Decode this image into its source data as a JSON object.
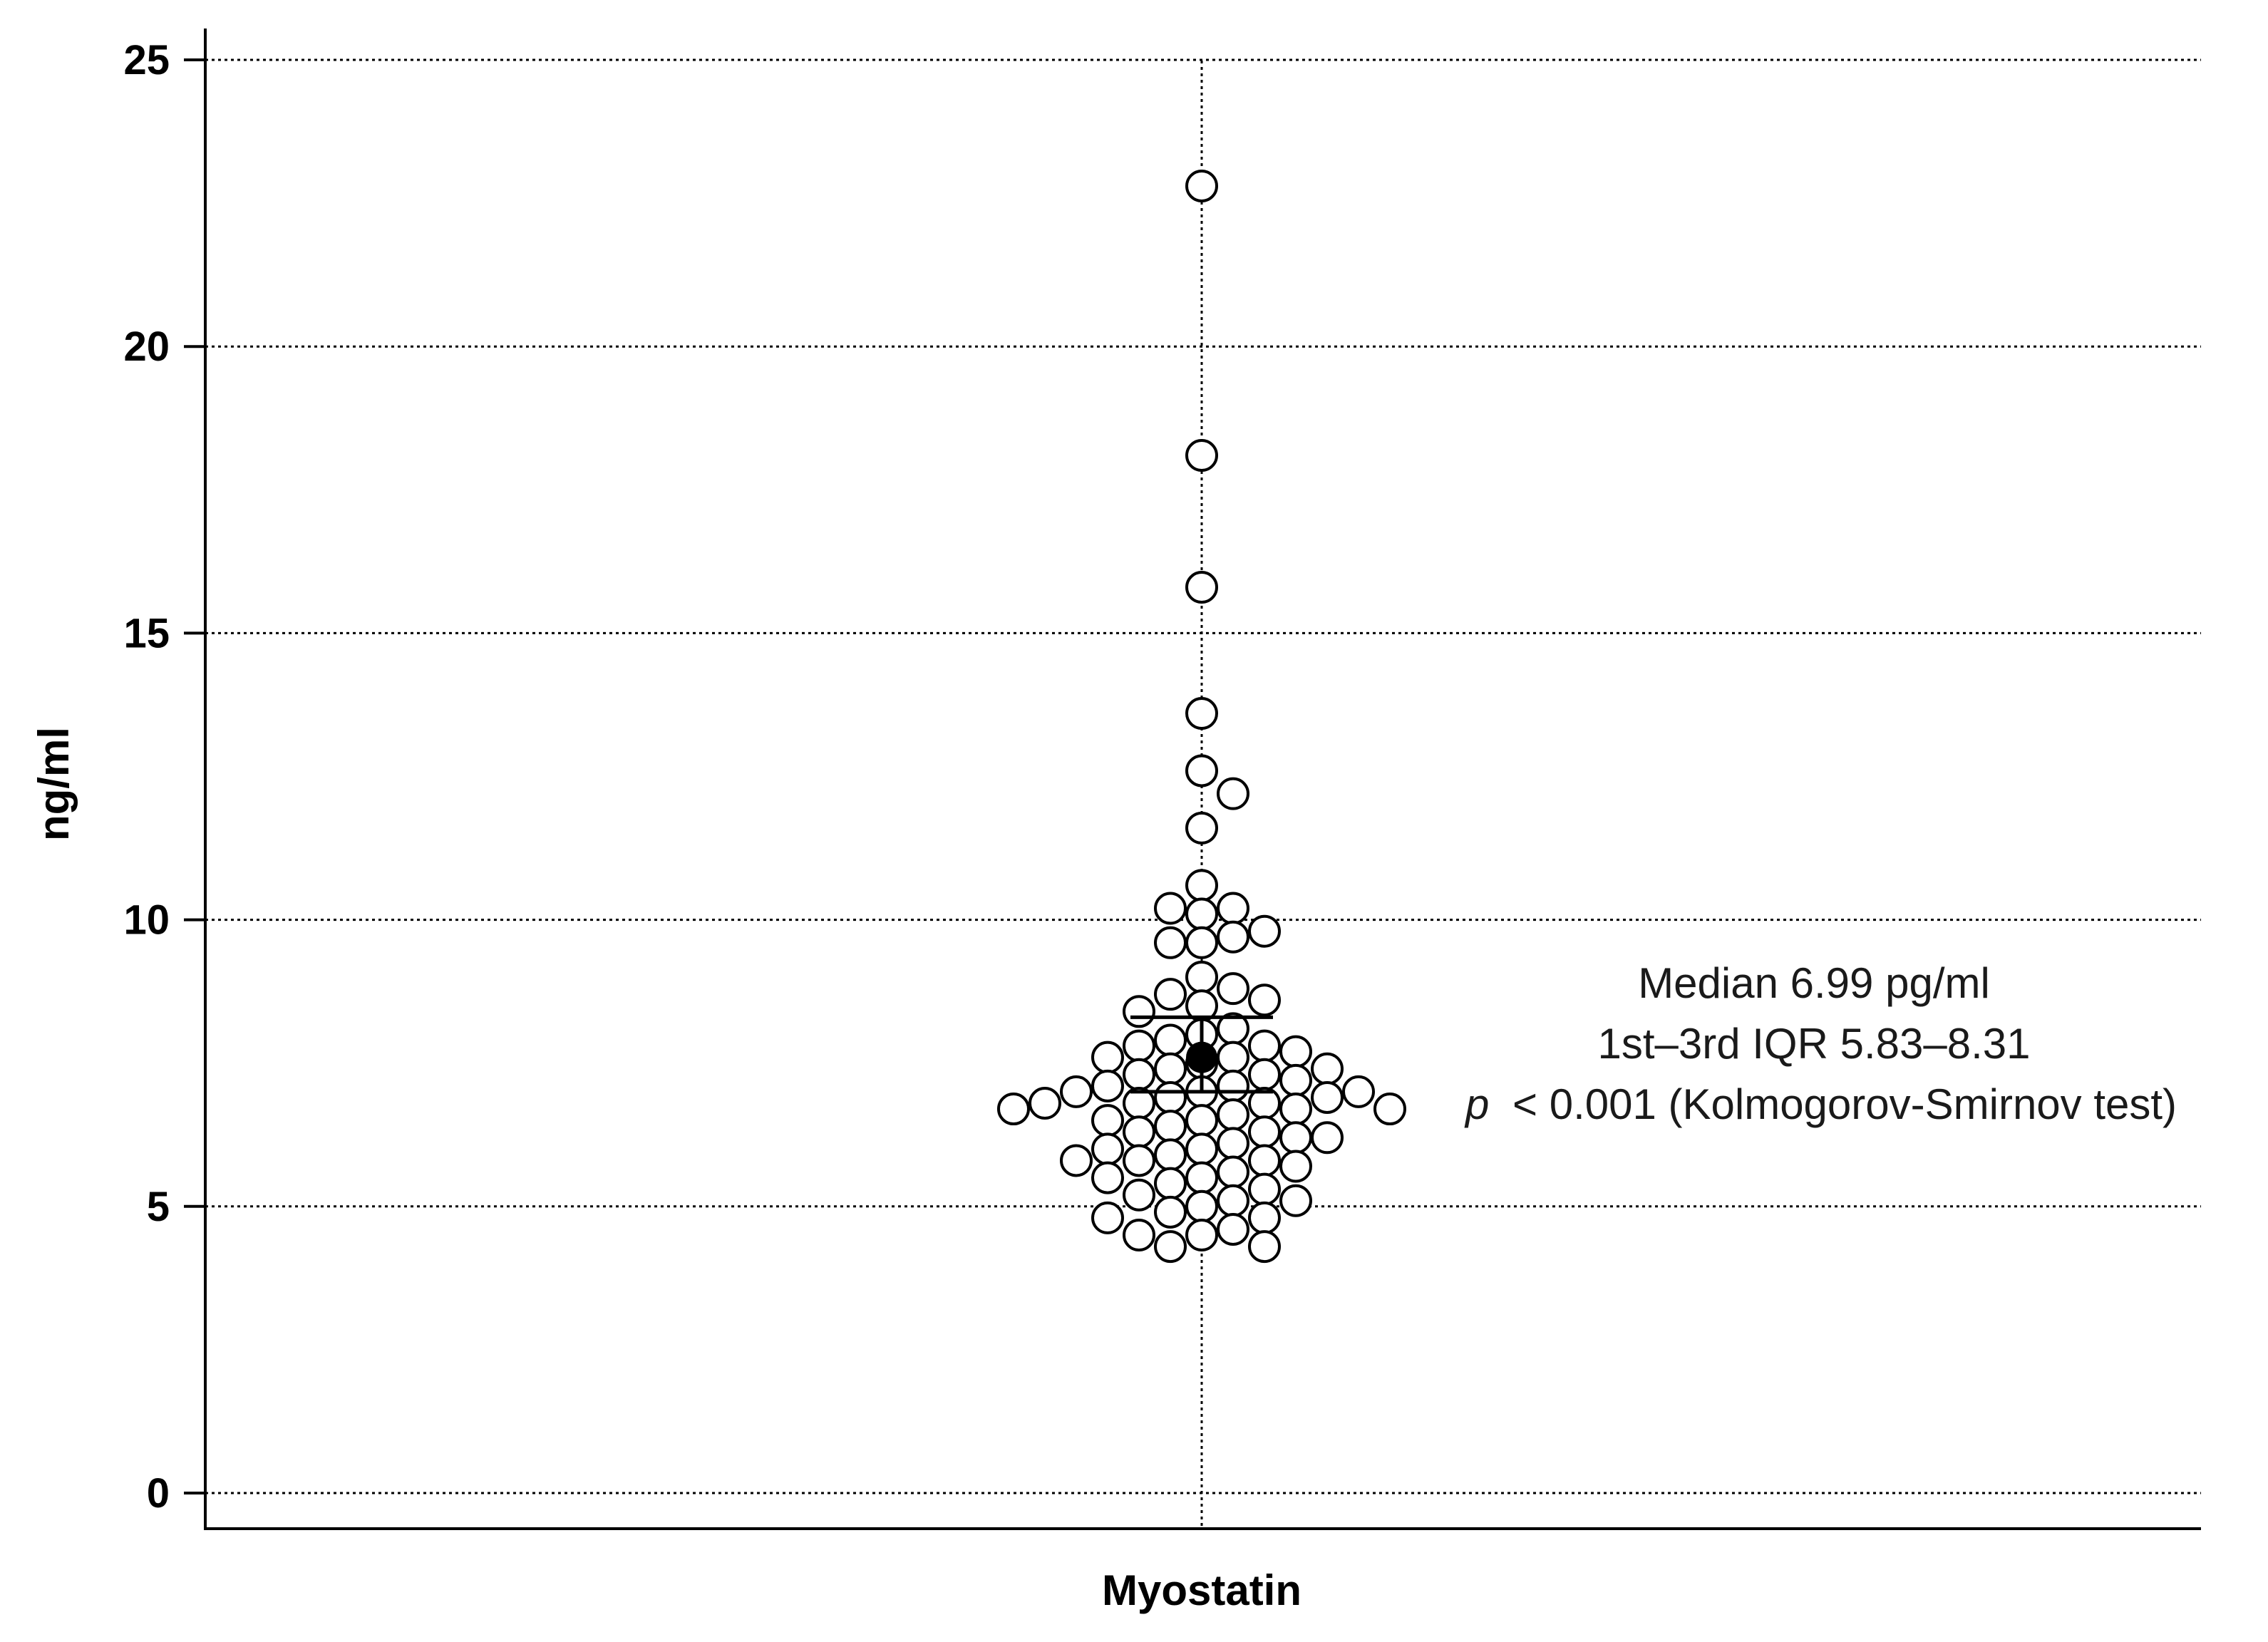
{
  "chart_data": {
    "type": "scatter",
    "subtype": "dot-plot",
    "title": "",
    "xlabel": "Myostatin",
    "ylabel": "ng/ml",
    "ylim": [
      0,
      25
    ],
    "yticks": [
      "0",
      "5",
      "10",
      "15",
      "20",
      "25"
    ],
    "grid": true,
    "categories": [
      "Myostatin"
    ],
    "series": [
      {
        "values": [
          22.8,
          18.1,
          15.8,
          13.6,
          12.6,
          12.2,
          11.6,
          10.6,
          10.2,
          10.1,
          10.2,
          9.8,
          9.6,
          9.6,
          9.7,
          9.0,
          8.8,
          8.7,
          8.6,
          8.5,
          8.4,
          8.1,
          8.0,
          7.9,
          7.8,
          7.8,
          7.7,
          7.6,
          7.6,
          7.5,
          7.4,
          7.4,
          7.3,
          7.3,
          7.2,
          7.1,
          7.1,
          7.0,
          7.0,
          7.0,
          6.9,
          6.9,
          6.8,
          6.8,
          6.8,
          6.7,
          6.7,
          6.7,
          6.6,
          6.5,
          6.5,
          6.4,
          6.3,
          6.3,
          6.2,
          6.2,
          6.1,
          6.0,
          6.0,
          5.9,
          5.8,
          5.8,
          5.8,
          5.7,
          5.6,
          5.5,
          5.5,
          5.4,
          5.3,
          5.2,
          5.1,
          5.1,
          5.0,
          4.9,
          4.8,
          4.8,
          4.6,
          4.5,
          4.5,
          4.3,
          4.3
        ]
      }
    ],
    "summary": {
      "mean": 7.6,
      "ci_upper": 8.3,
      "ci_lower": 7.0
    },
    "annotations": [
      "Median 6.99 pg/ml",
      "1st–3rd IQR 5.83–8.31",
      "p",
      "< 0.001 (Kolmogorov-Smirnov test)"
    ]
  }
}
